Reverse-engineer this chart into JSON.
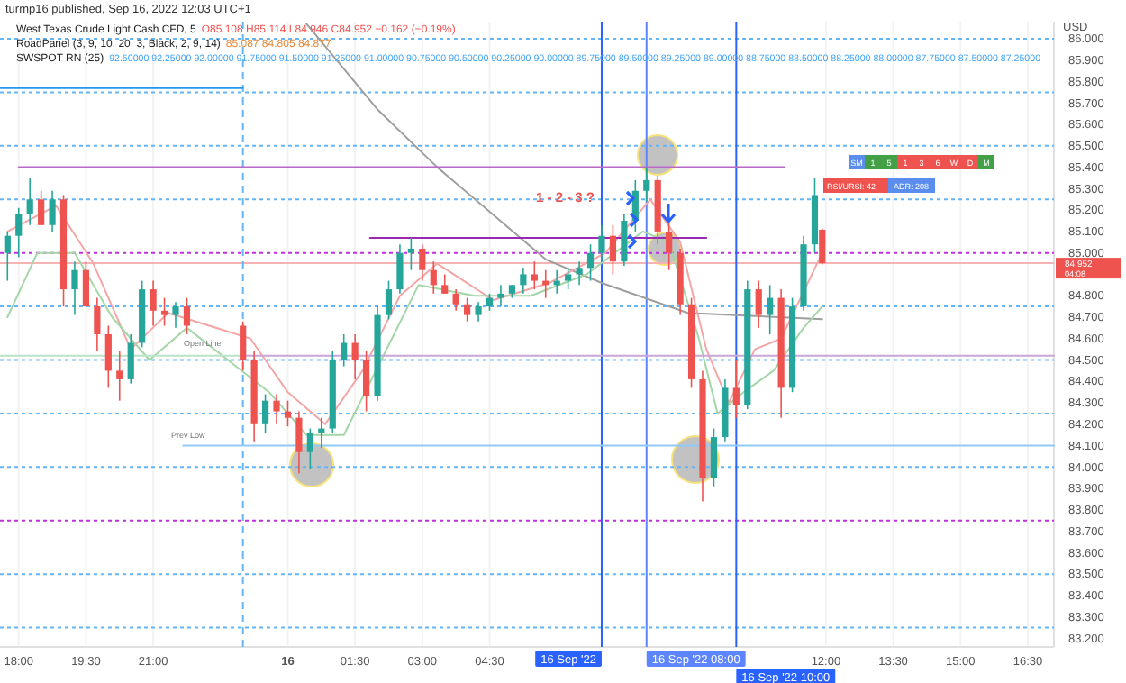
{
  "chart_data": {
    "type": "candlestick",
    "title": "turmp16 published, Sep 16, 2022 12:03 UTC+1",
    "subtitle": "West Texas Crude Light Cash CFD, 5",
    "ylabel": "USD",
    "x": [
      "2022-09-15T17:45",
      "2022-09-15T18:00",
      "2022-09-15T18:15",
      "2022-09-15T18:30",
      "2022-09-15T18:45",
      "2022-09-15T19:00",
      "2022-09-15T19:15",
      "2022-09-15T19:30",
      "2022-09-15T19:45",
      "2022-09-15T20:00",
      "2022-09-15T20:15",
      "2022-09-15T20:30",
      "2022-09-15T20:45",
      "2022-09-15T21:00",
      "2022-09-15T21:15",
      "2022-09-15T21:30",
      "2022-09-15T21:45",
      "2022-09-15T23:00",
      "2022-09-15T23:15",
      "2022-09-15T23:30",
      "2022-09-15T23:45",
      "2022-09-16T00:00",
      "2022-09-16T00:15",
      "2022-09-16T00:30",
      "2022-09-16T00:45",
      "2022-09-16T01:00",
      "2022-09-16T01:15",
      "2022-09-16T01:30",
      "2022-09-16T01:45",
      "2022-09-16T02:00",
      "2022-09-16T02:15",
      "2022-09-16T02:30",
      "2022-09-16T02:45",
      "2022-09-16T03:00",
      "2022-09-16T03:15",
      "2022-09-16T03:30",
      "2022-09-16T03:45",
      "2022-09-16T04:00",
      "2022-09-16T04:15",
      "2022-09-16T04:30",
      "2022-09-16T04:45",
      "2022-09-16T05:00",
      "2022-09-16T05:15",
      "2022-09-16T05:30",
      "2022-09-16T05:45",
      "2022-09-16T06:00",
      "2022-09-16T06:15",
      "2022-09-16T06:30",
      "2022-09-16T06:45",
      "2022-09-16T07:00",
      "2022-09-16T07:15",
      "2022-09-16T07:30",
      "2022-09-16T07:45",
      "2022-09-16T08:00",
      "2022-09-16T08:15",
      "2022-09-16T08:30",
      "2022-09-16T08:45",
      "2022-09-16T09:00",
      "2022-09-16T09:15",
      "2022-09-16T09:30",
      "2022-09-16T09:45",
      "2022-09-16T10:00",
      "2022-09-16T10:15",
      "2022-09-16T10:30",
      "2022-09-16T10:45",
      "2022-09-16T11:00",
      "2022-09-16T11:15",
      "2022-09-16T11:30",
      "2022-09-16T11:45",
      "2022-09-16T11:55"
    ],
    "ohlc": [
      [
        85.0,
        85.1,
        84.87,
        85.08
      ],
      [
        85.08,
        85.21,
        84.98,
        85.18
      ],
      [
        85.18,
        85.35,
        85.13,
        85.25
      ],
      [
        85.25,
        85.29,
        85.13,
        85.13
      ],
      [
        85.13,
        85.29,
        85.1,
        85.25
      ],
      [
        85.25,
        85.27,
        84.75,
        84.83
      ],
      [
        84.83,
        84.96,
        84.71,
        84.92
      ],
      [
        84.92,
        84.96,
        84.75,
        84.75
      ],
      [
        84.75,
        84.79,
        84.54,
        84.62
      ],
      [
        84.62,
        84.66,
        84.37,
        84.45
      ],
      [
        84.45,
        84.54,
        84.31,
        84.41
      ],
      [
        84.41,
        84.62,
        84.39,
        84.58
      ],
      [
        84.58,
        84.87,
        84.56,
        84.83
      ],
      [
        84.83,
        84.87,
        84.66,
        84.73
      ],
      [
        84.73,
        84.79,
        84.66,
        84.71
      ],
      [
        84.71,
        84.77,
        84.65,
        84.75
      ],
      [
        84.75,
        84.79,
        84.62,
        84.66
      ],
      [
        84.66,
        84.68,
        84.45,
        84.5
      ],
      [
        84.5,
        84.54,
        84.12,
        84.2
      ],
      [
        84.2,
        84.34,
        84.16,
        84.31
      ],
      [
        84.31,
        84.34,
        84.2,
        84.26
      ],
      [
        84.26,
        84.31,
        84.19,
        84.23
      ],
      [
        84.23,
        84.26,
        83.97,
        84.07
      ],
      [
        84.07,
        84.18,
        83.99,
        84.16
      ],
      [
        84.16,
        84.23,
        84.09,
        84.18
      ],
      [
        84.18,
        84.54,
        84.16,
        84.5
      ],
      [
        84.5,
        84.62,
        84.47,
        84.58
      ],
      [
        84.58,
        84.62,
        84.41,
        84.5
      ],
      [
        84.5,
        84.54,
        84.26,
        84.33
      ],
      [
        84.33,
        84.75,
        84.31,
        84.71
      ],
      [
        84.71,
        84.87,
        84.69,
        84.83
      ],
      [
        84.83,
        85.04,
        84.81,
        85.0
      ],
      [
        85.0,
        85.07,
        84.92,
        85.02
      ],
      [
        85.02,
        85.04,
        84.87,
        84.92
      ],
      [
        84.92,
        84.96,
        84.81,
        84.85
      ],
      [
        84.85,
        84.9,
        84.81,
        84.81
      ],
      [
        84.81,
        84.83,
        84.73,
        84.76
      ],
      [
        84.76,
        84.79,
        84.68,
        84.71
      ],
      [
        84.71,
        84.77,
        84.68,
        84.75
      ],
      [
        84.75,
        84.81,
        84.73,
        84.79
      ],
      [
        84.79,
        84.85,
        84.75,
        84.81
      ],
      [
        84.81,
        84.85,
        84.79,
        84.85
      ],
      [
        84.85,
        84.93,
        84.81,
        84.9
      ],
      [
        84.9,
        84.96,
        84.83,
        84.87
      ],
      [
        84.87,
        84.92,
        84.79,
        84.85
      ],
      [
        84.85,
        84.92,
        84.81,
        84.87
      ],
      [
        84.87,
        84.93,
        84.83,
        84.9
      ],
      [
        84.9,
        84.96,
        84.85,
        84.93
      ],
      [
        84.93,
        85.04,
        84.87,
        85.0
      ],
      [
        85.0,
        85.13,
        84.96,
        85.08
      ],
      [
        85.08,
        85.13,
        84.9,
        84.96
      ],
      [
        84.96,
        85.18,
        84.94,
        85.15
      ],
      [
        85.15,
        85.34,
        85.1,
        85.29
      ],
      [
        85.29,
        85.4,
        85.24,
        85.34
      ],
      [
        85.34,
        85.36,
        85.04,
        85.1
      ],
      [
        85.1,
        85.17,
        84.92,
        85.0
      ],
      [
        85.0,
        85.02,
        84.71,
        84.76
      ],
      [
        84.76,
        84.79,
        84.37,
        84.41
      ],
      [
        84.41,
        84.45,
        83.84,
        83.95
      ],
      [
        83.95,
        84.18,
        83.91,
        84.14
      ],
      [
        84.14,
        84.41,
        84.12,
        84.37
      ],
      [
        84.37,
        84.5,
        84.23,
        84.29
      ],
      [
        84.29,
        84.87,
        84.27,
        84.83
      ],
      [
        84.83,
        84.87,
        84.65,
        84.71
      ],
      [
        84.71,
        84.85,
        84.62,
        84.79
      ],
      [
        84.79,
        84.83,
        84.23,
        84.37
      ],
      [
        84.37,
        84.79,
        84.35,
        84.75
      ],
      [
        84.75,
        85.08,
        84.73,
        85.04
      ],
      [
        85.04,
        85.35,
        85.0,
        85.27
      ],
      [
        85.108,
        85.114,
        84.946,
        84.952
      ]
    ],
    "series": [
      {
        "type": "line",
        "color": "#9e9e9e",
        "x": [
          "2022-09-16T00:25",
          "2022-09-16T02:00",
          "2022-09-16T03:20",
          "2022-09-16T05:45",
          "2022-09-16T07:00",
          "2022-09-16T08:55",
          "2022-09-16T11:55"
        ],
        "values": [
          86.07,
          85.67,
          85.4,
          84.97,
          84.86,
          84.72,
          84.69
        ]
      },
      {
        "type": "line",
        "color": "#f4a6a6",
        "x": [
          "2022-09-15T17:45",
          "2022-09-15T18:50",
          "2022-09-15T19:40",
          "2022-09-15T20:30",
          "2022-09-15T21:20",
          "2022-09-15T23:10",
          "2022-09-16T00:00",
          "2022-09-16T00:50",
          "2022-09-16T01:40",
          "2022-09-16T02:30",
          "2022-09-16T03:20",
          "2022-09-16T04:35",
          "2022-09-16T05:50",
          "2022-09-16T07:05",
          "2022-09-16T08:05",
          "2022-09-16T08:45",
          "2022-09-16T09:20",
          "2022-09-16T09:50",
          "2022-09-16T10:25",
          "2022-09-16T11:00",
          "2022-09-16T11:55"
        ],
        "values": [
          85.1,
          85.22,
          84.95,
          84.55,
          84.72,
          84.6,
          84.35,
          84.2,
          84.45,
          84.8,
          84.95,
          84.78,
          84.86,
          85.0,
          85.25,
          85.05,
          84.55,
          84.3,
          84.55,
          84.6,
          85.0
        ]
      },
      {
        "type": "line",
        "color": "#a5d6a7",
        "x": [
          "2022-09-15T17:45",
          "2022-09-15T18:25",
          "2022-09-15T19:15",
          "2022-09-15T20:05",
          "2022-09-15T20:55",
          "2022-09-15T21:45",
          "2022-09-15T23:35",
          "2022-09-16T00:25",
          "2022-09-16T01:15",
          "2022-09-16T02:05",
          "2022-09-16T02:55",
          "2022-09-16T04:10",
          "2022-09-16T05:25",
          "2022-09-16T06:40",
          "2022-09-16T07:55",
          "2022-09-16T08:30",
          "2022-09-16T09:10",
          "2022-09-16T09:35",
          "2022-09-16T10:10",
          "2022-09-16T10:50",
          "2022-09-16T11:30",
          "2022-09-16T11:55"
        ],
        "values": [
          84.7,
          85.0,
          85.0,
          84.7,
          84.5,
          84.65,
          84.35,
          84.15,
          84.15,
          84.5,
          84.85,
          84.8,
          84.8,
          84.9,
          85.1,
          85.05,
          84.6,
          84.25,
          84.35,
          84.45,
          84.65,
          84.75
        ]
      },
      {
        "type": "line",
        "color": "#ba68c8",
        "x": [
          "2022-09-15T18:00",
          "2022-09-16T11:05"
        ],
        "values": [
          85.4,
          85.4
        ]
      },
      {
        "type": "line",
        "color": "#9c27b0",
        "x": [
          "2022-09-16T01:50",
          "2022-09-16T09:20"
        ],
        "values": [
          85.07,
          85.07
        ]
      },
      {
        "type": "line",
        "color": "#c9a6d6",
        "x": [
          "2022-09-15T23:00",
          "2022-09-16T17:05"
        ],
        "values": [
          84.52,
          84.52
        ]
      },
      {
        "type": "line",
        "color": "#b9e4c9",
        "x": [
          "2022-09-15T17:35",
          "2022-09-15T23:00"
        ],
        "values": [
          84.52,
          84.52
        ]
      },
      {
        "type": "line",
        "color": "#90caf9",
        "x": [
          "2022-09-15T21:40",
          "2022-09-16T17:05"
        ],
        "values": [
          84.1,
          84.1
        ]
      },
      {
        "type": "line",
        "color": "#2196f3",
        "x": [
          "2022-09-15T17:35",
          "2022-09-15T23:00"
        ],
        "values": [
          85.77,
          85.77
        ]
      }
    ],
    "xlim": [
      "2022-09-15T17:35",
      "2022-09-16T17:05"
    ],
    "xticks": [
      {
        "value": "2022-09-15T18:00",
        "label": "18:00"
      },
      {
        "value": "2022-09-15T19:30",
        "label": "19:30"
      },
      {
        "value": "2022-09-15T21:00",
        "label": "21:00"
      },
      {
        "value": "2022-09-16T00:00",
        "label": "16"
      },
      {
        "value": "2022-09-16T01:30",
        "label": "01:30"
      },
      {
        "value": "2022-09-16T03:00",
        "label": "03:00"
      },
      {
        "value": "2022-09-16T04:30",
        "label": "04:30"
      },
      {
        "value": "2022-09-16T12:00",
        "label": "12:00"
      },
      {
        "value": "2022-09-16T13:30",
        "label": "13:30"
      },
      {
        "value": "2022-09-16T15:00",
        "label": "15:00"
      },
      {
        "value": "2022-09-16T16:30",
        "label": "16:30"
      }
    ],
    "ylim": [
      83.16,
      86.08
    ],
    "yticks": [
      {
        "value": 83.2,
        "label": "83.200"
      },
      {
        "value": 83.3,
        "label": "83.300"
      },
      {
        "value": 83.4,
        "label": "83.400"
      },
      {
        "value": 83.5,
        "label": "83.500"
      },
      {
        "value": 83.6,
        "label": "83.600"
      },
      {
        "value": 83.7,
        "label": "83.700"
      },
      {
        "value": 83.8,
        "label": "83.800"
      },
      {
        "value": 83.9,
        "label": "83.900"
      },
      {
        "value": 84.0,
        "label": "84.000"
      },
      {
        "value": 84.1,
        "label": "84.100"
      },
      {
        "value": 84.2,
        "label": "84.200"
      },
      {
        "value": 84.3,
        "label": "84.300"
      },
      {
        "value": 84.4,
        "label": "84.400"
      },
      {
        "value": 84.5,
        "label": "84.500"
      },
      {
        "value": 84.6,
        "label": "84.600"
      },
      {
        "value": 84.7,
        "label": "84.700"
      },
      {
        "value": 84.8,
        "label": "84.800"
      },
      {
        "value": 85.0,
        "label": "85.000"
      },
      {
        "value": 85.1,
        "label": "85.100"
      },
      {
        "value": 85.2,
        "label": "85.200"
      },
      {
        "value": 85.3,
        "label": "85.300"
      },
      {
        "value": 85.4,
        "label": "85.400"
      },
      {
        "value": 85.5,
        "label": "85.500"
      },
      {
        "value": 85.6,
        "label": "85.600"
      },
      {
        "value": 85.7,
        "label": "85.700"
      },
      {
        "value": 85.8,
        "label": "85.800"
      },
      {
        "value": 85.9,
        "label": "85.900"
      },
      {
        "value": 86.0,
        "label": "86.000"
      }
    ],
    "grid": "x",
    "ref_lines": [
      {
        "axis": "y",
        "value": 83.25,
        "color": "#64b5f6",
        "line_style": "dotted"
      },
      {
        "axis": "y",
        "value": 83.5,
        "color": "#64b5f6",
        "line_style": "dotted"
      },
      {
        "axis": "y",
        "value": 83.75,
        "color": "#c030e0",
        "line_style": "dotted"
      },
      {
        "axis": "y",
        "value": 84.0,
        "color": "#64b5f6",
        "line_style": "dotted"
      },
      {
        "axis": "y",
        "value": 84.25,
        "color": "#64b5f6",
        "line_style": "dotted"
      },
      {
        "axis": "y",
        "value": 84.5,
        "color": "#64b5f6",
        "line_style": "dotted"
      },
      {
        "axis": "y",
        "value": 84.75,
        "color": "#64b5f6",
        "line_style": "dotted"
      },
      {
        "axis": "y",
        "value": 85.0,
        "color": "#c030e0",
        "line_style": "dotted"
      },
      {
        "axis": "y",
        "value": 85.25,
        "color": "#64b5f6",
        "line_style": "dotted"
      },
      {
        "axis": "y",
        "value": 85.5,
        "color": "#64b5f6",
        "line_style": "dotted"
      },
      {
        "axis": "y",
        "value": 85.75,
        "color": "#64b5f6",
        "line_style": "dotted"
      },
      {
        "axis": "y",
        "value": 86.0,
        "color": "#64b5f6",
        "line_style": "dotted"
      },
      {
        "axis": "y",
        "value": 84.952,
        "color": "#f6b3b3",
        "line_style": "solid"
      },
      {
        "axis": "x",
        "value": "2022-09-15T23:00",
        "color": "#64b5f6",
        "line_style": "dashed"
      },
      {
        "axis": "x",
        "value": "2022-09-16T07:00",
        "color": "#2962ff",
        "line_style": "solid",
        "label": "16 Sep '22"
      },
      {
        "axis": "x",
        "value": "2022-09-16T08:00",
        "color": "#5c85ff",
        "line_style": "solid",
        "label": "16 Sep '22  08:00"
      },
      {
        "axis": "x",
        "value": "2022-09-16T10:00",
        "color": "#2962ff",
        "line_style": "solid",
        "label": "16 Sep '22  10:00"
      }
    ],
    "annotations": [
      "O85.108 H85.114 L84.946 C84.952 −0.162 (−0.19%)",
      "RoadPanel (3, 9, 10, 20, 3, Black, 2, 9, 14)",
      "85.087 84.805 84.877",
      "SWSPOT RN (25)",
      "92.50000 92.25000 92.00000 91.75000 91.50000 91.25000 91.00000 90.75000 90.50000 90.25000 90.00000 89.75000 89.50000 89.25000 89.00000 88.75000 88.50000 88.25000 88.00000 87.75000 87.50000 87.25000",
      "1 - 2 - 3 ?",
      "Open Line",
      "Prev Low",
      "SM",
      "1",
      "5",
      "1",
      "3",
      "6",
      "W",
      "D",
      "M",
      "RSI/URSI: 42",
      "ADR: 208",
      "84.952",
      "04:08"
    ]
  }
}
